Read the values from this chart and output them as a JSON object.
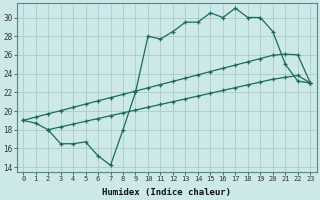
{
  "xlabel": "Humidex (Indice chaleur)",
  "bg_color": "#cce8e8",
  "line_color": "#1a6b5a",
  "grid_color": "#aacccc",
  "ylim": [
    13.5,
    31.5
  ],
  "xlim": [
    -0.5,
    23.5
  ],
  "yticks": [
    14,
    16,
    18,
    20,
    22,
    24,
    26,
    28,
    30
  ],
  "xticks": [
    0,
    1,
    2,
    3,
    4,
    5,
    6,
    7,
    8,
    9,
    10,
    11,
    12,
    13,
    14,
    15,
    16,
    17,
    18,
    19,
    20,
    21,
    22,
    23
  ],
  "line1_x": [
    0,
    1,
    2,
    3,
    4,
    5,
    6,
    7,
    8,
    9,
    10,
    11,
    12,
    13,
    14,
    15,
    16,
    17,
    18,
    19,
    20,
    21,
    22,
    23
  ],
  "line1_y": [
    19.0,
    18.7,
    18.0,
    16.5,
    16.5,
    16.7,
    15.2,
    14.2,
    18.0,
    22.0,
    28.0,
    27.7,
    28.5,
    29.5,
    29.5,
    30.5,
    30.0,
    31.0,
    30.0,
    30.0,
    28.5,
    25.0,
    23.2,
    23.0
  ],
  "line2_x": [
    0,
    1,
    2,
    3,
    4,
    5,
    6,
    7,
    8,
    9,
    10,
    11,
    12,
    13,
    14,
    15,
    16,
    17,
    18,
    19,
    20,
    21,
    22,
    23
  ],
  "line2_y": [
    19.0,
    19.35,
    19.7,
    20.04,
    20.39,
    20.74,
    21.09,
    21.43,
    21.78,
    22.13,
    22.48,
    22.83,
    23.17,
    23.52,
    23.87,
    24.22,
    24.57,
    24.91,
    25.26,
    25.61,
    25.96,
    26.09,
    26.0,
    23.0
  ],
  "line3_x": [
    2,
    3,
    4,
    5,
    6,
    7,
    8,
    9,
    10,
    11,
    12,
    13,
    14,
    15,
    16,
    17,
    18,
    19,
    20,
    21,
    22,
    23
  ],
  "line3_y": [
    18.0,
    18.3,
    18.6,
    18.9,
    19.2,
    19.5,
    19.8,
    20.1,
    20.4,
    20.7,
    21.0,
    21.3,
    21.6,
    21.9,
    22.2,
    22.5,
    22.8,
    23.1,
    23.4,
    23.6,
    23.8,
    23.0
  ]
}
